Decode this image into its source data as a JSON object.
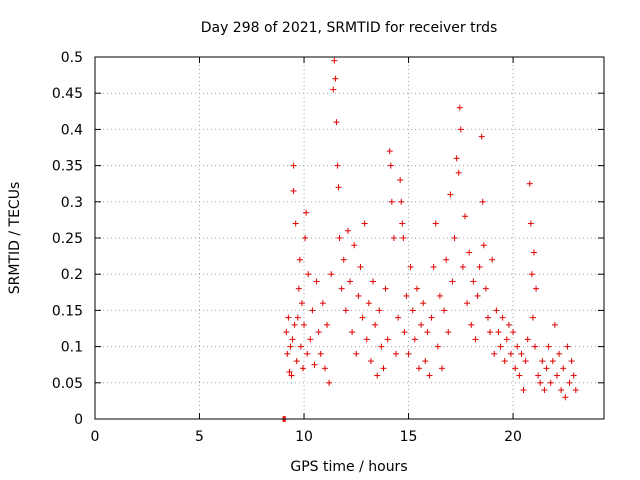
{
  "chart_data": {
    "type": "scatter",
    "title": "Day 298 of 2021, SRMTID for receiver trds",
    "xlabel": "GPS time / hours",
    "ylabel": "SRMTID / TECUs",
    "xlim": [
      0,
      24.35
    ],
    "ylim": [
      0,
      0.5
    ],
    "xticks": [
      0,
      5,
      10,
      15,
      20
    ],
    "yticks": [
      0,
      0.05,
      0.1,
      0.15,
      0.2,
      0.25,
      0.3,
      0.35,
      0.4,
      0.45,
      0.5
    ],
    "marker": "+",
    "color": "#e00000",
    "grid": true,
    "series": [
      {
        "name": "SRMTID",
        "points": [
          [
            9.0,
            0.0
          ],
          [
            9.05,
            0.0
          ],
          [
            9.1,
            0.0
          ],
          [
            9.15,
            0.12
          ],
          [
            9.2,
            0.09
          ],
          [
            9.25,
            0.14
          ],
          [
            9.3,
            0.065
          ],
          [
            9.35,
            0.1
          ],
          [
            9.4,
            0.06
          ],
          [
            9.45,
            0.11
          ],
          [
            9.5,
            0.35
          ],
          [
            9.5,
            0.315
          ],
          [
            9.55,
            0.13
          ],
          [
            9.6,
            0.27
          ],
          [
            9.65,
            0.08
          ],
          [
            9.7,
            0.14
          ],
          [
            9.75,
            0.18
          ],
          [
            9.8,
            0.22
          ],
          [
            9.85,
            0.1
          ],
          [
            9.9,
            0.16
          ],
          [
            9.95,
            0.07
          ],
          [
            10.0,
            0.13
          ],
          [
            10.05,
            0.25
          ],
          [
            10.1,
            0.285
          ],
          [
            10.15,
            0.09
          ],
          [
            10.2,
            0.2
          ],
          [
            10.3,
            0.11
          ],
          [
            10.4,
            0.15
          ],
          [
            10.5,
            0.075
          ],
          [
            10.6,
            0.19
          ],
          [
            10.7,
            0.12
          ],
          [
            10.8,
            0.09
          ],
          [
            10.9,
            0.16
          ],
          [
            11.0,
            0.07
          ],
          [
            11.1,
            0.13
          ],
          [
            11.2,
            0.05
          ],
          [
            11.3,
            0.2
          ],
          [
            11.4,
            0.455
          ],
          [
            11.45,
            0.495
          ],
          [
            11.5,
            0.47
          ],
          [
            11.55,
            0.41
          ],
          [
            11.6,
            0.35
          ],
          [
            11.65,
            0.32
          ],
          [
            11.7,
            0.25
          ],
          [
            11.8,
            0.18
          ],
          [
            11.9,
            0.22
          ],
          [
            12.0,
            0.15
          ],
          [
            12.1,
            0.26
          ],
          [
            12.2,
            0.19
          ],
          [
            12.3,
            0.12
          ],
          [
            12.4,
            0.24
          ],
          [
            12.5,
            0.09
          ],
          [
            12.6,
            0.17
          ],
          [
            12.7,
            0.21
          ],
          [
            12.8,
            0.14
          ],
          [
            12.9,
            0.27
          ],
          [
            13.0,
            0.11
          ],
          [
            13.1,
            0.16
          ],
          [
            13.2,
            0.08
          ],
          [
            13.3,
            0.19
          ],
          [
            13.4,
            0.13
          ],
          [
            13.5,
            0.06
          ],
          [
            13.6,
            0.15
          ],
          [
            13.7,
            0.1
          ],
          [
            13.8,
            0.07
          ],
          [
            13.9,
            0.18
          ],
          [
            14.0,
            0.11
          ],
          [
            14.1,
            0.37
          ],
          [
            14.15,
            0.35
          ],
          [
            14.2,
            0.3
          ],
          [
            14.3,
            0.25
          ],
          [
            14.4,
            0.09
          ],
          [
            14.5,
            0.14
          ],
          [
            14.6,
            0.33
          ],
          [
            14.65,
            0.3
          ],
          [
            14.7,
            0.27
          ],
          [
            14.75,
            0.25
          ],
          [
            14.8,
            0.12
          ],
          [
            14.9,
            0.17
          ],
          [
            15.0,
            0.09
          ],
          [
            15.1,
            0.21
          ],
          [
            15.2,
            0.15
          ],
          [
            15.3,
            0.11
          ],
          [
            15.4,
            0.18
          ],
          [
            15.5,
            0.07
          ],
          [
            15.6,
            0.13
          ],
          [
            15.7,
            0.16
          ],
          [
            15.8,
            0.08
          ],
          [
            15.9,
            0.12
          ],
          [
            16.0,
            0.06
          ],
          [
            16.1,
            0.14
          ],
          [
            16.2,
            0.21
          ],
          [
            16.3,
            0.27
          ],
          [
            16.4,
            0.1
          ],
          [
            16.5,
            0.17
          ],
          [
            16.6,
            0.07
          ],
          [
            16.7,
            0.15
          ],
          [
            16.8,
            0.22
          ],
          [
            16.9,
            0.12
          ],
          [
            17.0,
            0.31
          ],
          [
            17.1,
            0.19
          ],
          [
            17.2,
            0.25
          ],
          [
            17.3,
            0.36
          ],
          [
            17.4,
            0.34
          ],
          [
            17.45,
            0.43
          ],
          [
            17.5,
            0.4
          ],
          [
            17.6,
            0.21
          ],
          [
            17.7,
            0.28
          ],
          [
            17.8,
            0.16
          ],
          [
            17.9,
            0.23
          ],
          [
            18.0,
            0.13
          ],
          [
            18.1,
            0.19
          ],
          [
            18.2,
            0.11
          ],
          [
            18.3,
            0.17
          ],
          [
            18.4,
            0.21
          ],
          [
            18.5,
            0.39
          ],
          [
            18.55,
            0.3
          ],
          [
            18.6,
            0.24
          ],
          [
            18.7,
            0.18
          ],
          [
            18.8,
            0.14
          ],
          [
            18.9,
            0.12
          ],
          [
            19.0,
            0.22
          ],
          [
            19.1,
            0.09
          ],
          [
            19.2,
            0.15
          ],
          [
            19.3,
            0.12
          ],
          [
            19.4,
            0.1
          ],
          [
            19.5,
            0.14
          ],
          [
            19.6,
            0.08
          ],
          [
            19.7,
            0.11
          ],
          [
            19.8,
            0.13
          ],
          [
            19.9,
            0.09
          ],
          [
            20.0,
            0.12
          ],
          [
            20.1,
            0.07
          ],
          [
            20.2,
            0.1
          ],
          [
            20.3,
            0.06
          ],
          [
            20.4,
            0.09
          ],
          [
            20.5,
            0.04
          ],
          [
            20.6,
            0.08
          ],
          [
            20.7,
            0.11
          ],
          [
            20.8,
            0.325
          ],
          [
            20.85,
            0.27
          ],
          [
            20.9,
            0.2
          ],
          [
            20.95,
            0.14
          ],
          [
            21.0,
            0.23
          ],
          [
            21.05,
            0.1
          ],
          [
            21.1,
            0.18
          ],
          [
            21.2,
            0.06
          ],
          [
            21.3,
            0.05
          ],
          [
            21.4,
            0.08
          ],
          [
            21.5,
            0.04
          ],
          [
            21.6,
            0.07
          ],
          [
            21.7,
            0.1
          ],
          [
            21.8,
            0.05
          ],
          [
            21.9,
            0.08
          ],
          [
            22.0,
            0.13
          ],
          [
            22.1,
            0.06
          ],
          [
            22.2,
            0.09
          ],
          [
            22.3,
            0.04
          ],
          [
            22.4,
            0.07
          ],
          [
            22.5,
            0.03
          ],
          [
            22.6,
            0.1
          ],
          [
            22.7,
            0.05
          ],
          [
            22.8,
            0.08
          ],
          [
            22.9,
            0.06
          ],
          [
            23.0,
            0.04
          ]
        ]
      }
    ]
  }
}
